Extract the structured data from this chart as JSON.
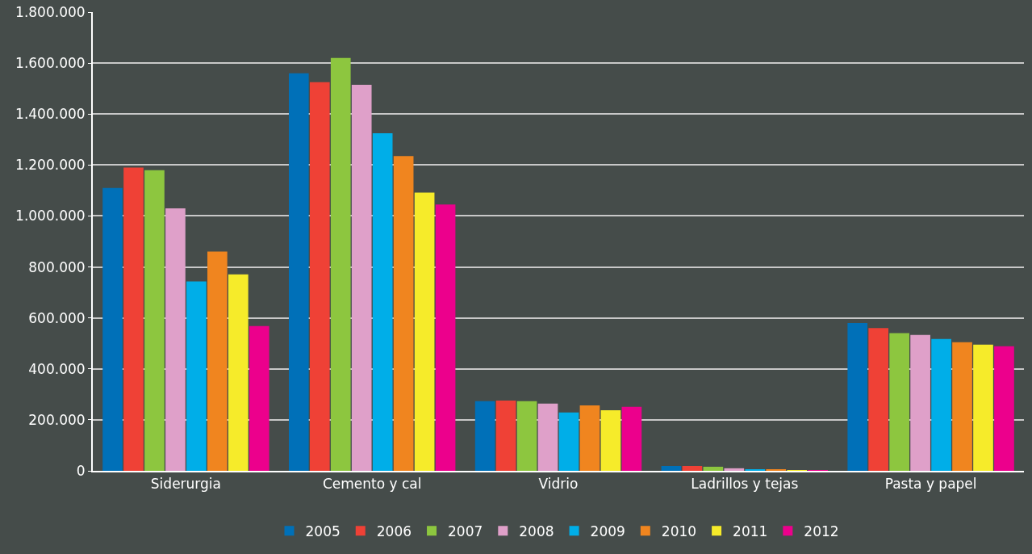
{
  "chart_data": {
    "type": "bar",
    "categories": [
      "Siderurgia",
      "Cemento y cal",
      "Vidrio",
      "Ladrillos y tejas",
      "Pasta y papel"
    ],
    "series": [
      {
        "name": "2005",
        "color": "#0070b8",
        "values": [
          1110000,
          1560000,
          273000,
          19000,
          580000
        ]
      },
      {
        "name": "2006",
        "color": "#ef4136",
        "values": [
          1190000,
          1525000,
          276000,
          19000,
          560000
        ]
      },
      {
        "name": "2007",
        "color": "#8dc63f",
        "values": [
          1180000,
          1620000,
          273000,
          16000,
          540000
        ]
      },
      {
        "name": "2008",
        "color": "#dfa0c9",
        "values": [
          1030000,
          1515000,
          264000,
          10000,
          533000
        ]
      },
      {
        "name": "2009",
        "color": "#00aee8",
        "values": [
          743000,
          1325000,
          229000,
          6000,
          517000
        ]
      },
      {
        "name": "2010",
        "color": "#f0851f",
        "values": [
          860000,
          1235000,
          257000,
          6000,
          505000
        ]
      },
      {
        "name": "2011",
        "color": "#f6eb2a",
        "values": [
          771000,
          1092000,
          238000,
          3000,
          495000
        ]
      },
      {
        "name": "2012",
        "color": "#ec008c",
        "values": [
          568000,
          1045000,
          251000,
          3000,
          489000
        ]
      }
    ],
    "ylim": [
      0,
      1800000
    ],
    "yticks": [
      0,
      {
        "value": 200000,
        "label": "200.000"
      },
      {
        "value": 400000,
        "label": "400.000"
      },
      {
        "value": 600000,
        "label": "600.000"
      },
      {
        "value": 800000,
        "label": "800.000"
      },
      {
        "value": 1000000,
        "label": "1.000.000"
      },
      {
        "value": 1200000,
        "label": "1.200.000"
      },
      {
        "value": 1400000,
        "label": "1.400.000"
      },
      {
        "value": 1600000,
        "label": "1.600.000"
      },
      {
        "value": 1800000,
        "label": "1.800.000"
      }
    ],
    "grid": "y",
    "legend": "bottom"
  }
}
